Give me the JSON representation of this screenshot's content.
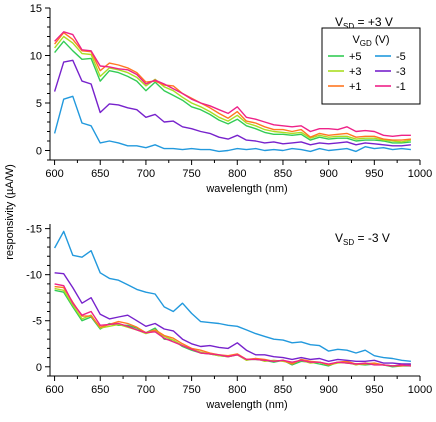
{
  "figure": {
    "shared_ylabel": "responsivity (µA/W)"
  },
  "chart_data": [
    {
      "type": "line",
      "panel": "top",
      "xlabel": "wavelength (nm)",
      "xlim": [
        595,
        1000
      ],
      "ylim": [
        -1,
        15
      ],
      "xticks": [
        600,
        650,
        700,
        750,
        800,
        850,
        900,
        950,
        1000
      ],
      "yticks": [
        0,
        5,
        10,
        15
      ],
      "ytick_labels": [
        "0",
        "5",
        "10",
        "15"
      ],
      "annotation": {
        "main": "V",
        "sub": "SD",
        "rest": " = +3 V"
      },
      "legend": {
        "title_main": "V",
        "title_sub": "GD",
        "title_rest": " (V)",
        "placement": "top-right"
      },
      "x": [
        600,
        610,
        620,
        630,
        640,
        650,
        660,
        670,
        680,
        690,
        700,
        710,
        720,
        730,
        740,
        750,
        760,
        770,
        780,
        790,
        800,
        810,
        820,
        830,
        840,
        850,
        860,
        870,
        880,
        890,
        900,
        910,
        920,
        930,
        940,
        950,
        960,
        970,
        980,
        990
      ],
      "series": [
        {
          "name": "+5",
          "color": "#33cc55",
          "values": [
            10.3,
            11.5,
            10.5,
            9.6,
            9.7,
            7.3,
            8.4,
            8.2,
            7.8,
            7.3,
            6.3,
            7.2,
            6.3,
            5.8,
            5.3,
            4.6,
            4.3,
            3.8,
            3.2,
            2.8,
            3.3,
            2.6,
            2.3,
            1.9,
            1.7,
            1.7,
            1.6,
            1.7,
            1.1,
            1.4,
            1.2,
            1.3,
            1.3,
            1.0,
            1.1,
            1.1,
            1.0,
            0.8,
            0.8,
            0.9
          ]
        },
        {
          "name": "+3",
          "color": "#aadd22",
          "values": [
            10.8,
            12.0,
            11.3,
            10.2,
            10.1,
            7.8,
            8.7,
            8.5,
            8.2,
            7.7,
            6.8,
            7.5,
            6.7,
            6.3,
            5.6,
            5.0,
            4.6,
            4.1,
            3.5,
            3.1,
            3.7,
            2.9,
            2.6,
            2.2,
            2.0,
            1.9,
            1.8,
            1.9,
            1.3,
            1.6,
            1.4,
            1.5,
            1.5,
            1.2,
            1.3,
            1.3,
            1.1,
            1.0,
            0.9,
            1.1
          ]
        },
        {
          "name": "+1",
          "color": "#ff7722",
          "values": [
            11.2,
            12.4,
            11.7,
            10.5,
            10.4,
            8.4,
            9.2,
            9.0,
            8.7,
            8.2,
            7.2,
            7.3,
            6.9,
            6.8,
            6.0,
            5.5,
            5.0,
            4.5,
            3.9,
            3.4,
            4.1,
            3.1,
            2.9,
            2.5,
            2.2,
            2.2,
            2.0,
            2.2,
            1.4,
            1.8,
            1.6,
            1.7,
            1.8,
            1.4,
            1.5,
            1.5,
            1.2,
            1.1,
            1.1,
            1.2
          ]
        },
        {
          "name": "-5",
          "color": "#2299dd",
          "values": [
            1.8,
            5.4,
            5.7,
            2.9,
            2.6,
            0.8,
            1.0,
            0.8,
            0.5,
            0.5,
            0.3,
            0.6,
            0.2,
            0.2,
            0.1,
            0.2,
            0.1,
            0.1,
            -0.1,
            0.0,
            0.2,
            0.1,
            0.2,
            0.0,
            0.1,
            0.0,
            0.2,
            0.1,
            -0.1,
            0.2,
            0.0,
            0.1,
            0.2,
            -0.1,
            0.4,
            0.2,
            0.3,
            0.1,
            0.2,
            0.1
          ]
        },
        {
          "name": "-3",
          "color": "#7722cc",
          "values": [
            6.2,
            9.3,
            9.5,
            7.3,
            7.0,
            4.0,
            4.9,
            4.8,
            4.5,
            4.3,
            3.5,
            3.8,
            3.0,
            3.1,
            2.5,
            2.3,
            2.0,
            1.8,
            1.4,
            1.2,
            1.6,
            1.1,
            1.0,
            0.8,
            0.9,
            0.7,
            0.8,
            0.9,
            0.6,
            0.8,
            0.7,
            0.8,
            0.9,
            0.6,
            0.8,
            0.7,
            0.6,
            0.5,
            0.5,
            0.6
          ]
        },
        {
          "name": "-1",
          "color": "#ee2288",
          "values": [
            11.5,
            12.5,
            12.2,
            10.6,
            10.5,
            8.9,
            8.8,
            8.6,
            8.5,
            8.0,
            7.0,
            7.4,
            7.0,
            6.5,
            6.0,
            5.4,
            5.0,
            4.7,
            4.3,
            3.9,
            4.6,
            3.5,
            3.3,
            3.0,
            2.7,
            2.6,
            2.5,
            2.6,
            2.0,
            2.3,
            2.3,
            2.2,
            2.5,
            2.0,
            2.1,
            2.0,
            1.6,
            1.5,
            1.6,
            1.6
          ]
        }
      ]
    },
    {
      "type": "line",
      "panel": "bottom",
      "xlabel": "wavelength (nm)",
      "xlim": [
        595,
        1000
      ],
      "ylim": [
        -15.5,
        1
      ],
      "xticks": [
        600,
        650,
        700,
        750,
        800,
        850,
        900,
        950,
        1000
      ],
      "yticks": [
        -15,
        -10,
        -5,
        0
      ],
      "ytick_labels": [
        "-15",
        "-10",
        "-5",
        "0"
      ],
      "annotation": {
        "main": "V",
        "sub": "SD",
        "rest": " = -3 V"
      },
      "x": [
        600,
        610,
        620,
        630,
        640,
        650,
        660,
        670,
        680,
        690,
        700,
        710,
        720,
        730,
        740,
        750,
        760,
        770,
        780,
        790,
        800,
        810,
        820,
        830,
        840,
        850,
        860,
        870,
        880,
        890,
        900,
        910,
        920,
        930,
        940,
        950,
        960,
        970,
        980,
        990
      ],
      "series": [
        {
          "name": "+5",
          "color": "#33cc55",
          "values": [
            -8.3,
            -8.1,
            -6.5,
            -5.0,
            -5.4,
            -4.1,
            -4.7,
            -4.5,
            -4.5,
            -4.2,
            -3.7,
            -4.2,
            -3.0,
            -2.9,
            -2.2,
            -1.8,
            -1.5,
            -1.4,
            -1.2,
            -1.1,
            -1.3,
            -0.8,
            -0.8,
            -0.7,
            -0.5,
            -0.7,
            -0.2,
            -0.6,
            -0.5,
            -0.3,
            -0.1,
            -0.5,
            -0.4,
            -0.3,
            -0.2,
            -0.3,
            -0.2,
            0.0,
            -0.1,
            -0.1
          ]
        },
        {
          "name": "+3",
          "color": "#aadd22",
          "values": [
            -8.5,
            -8.3,
            -6.7,
            -5.2,
            -5.6,
            -4.2,
            -4.4,
            -4.6,
            -4.3,
            -4.0,
            -3.6,
            -3.9,
            -3.3,
            -2.9,
            -2.3,
            -1.9,
            -1.6,
            -1.4,
            -1.2,
            -1.1,
            -1.3,
            -0.7,
            -0.9,
            -0.6,
            -0.7,
            -0.6,
            -0.4,
            -0.7,
            -0.4,
            -0.5,
            -0.2,
            -0.4,
            -0.5,
            -0.2,
            -0.4,
            -0.3,
            -0.2,
            -0.1,
            -0.2,
            -0.1
          ]
        },
        {
          "name": "+1",
          "color": "#ff7722",
          "values": [
            -8.7,
            -8.6,
            -7.0,
            -5.5,
            -5.5,
            -4.3,
            -4.6,
            -4.9,
            -4.7,
            -4.3,
            -3.7,
            -4.0,
            -3.4,
            -3.1,
            -2.5,
            -2.0,
            -1.8,
            -1.5,
            -1.3,
            -1.2,
            -1.4,
            -0.8,
            -0.9,
            -0.8,
            -0.6,
            -0.7,
            -0.3,
            -0.8,
            -0.6,
            -0.5,
            -0.2,
            -0.5,
            -0.6,
            -0.3,
            -0.3,
            -0.4,
            -0.2,
            -0.1,
            -0.1,
            -0.2
          ]
        },
        {
          "name": "-5",
          "color": "#2299dd",
          "values": [
            -12.9,
            -14.7,
            -12.1,
            -11.9,
            -12.6,
            -10.2,
            -9.6,
            -9.4,
            -8.9,
            -8.4,
            -8.1,
            -7.9,
            -6.5,
            -6.0,
            -6.9,
            -5.8,
            -4.9,
            -4.8,
            -4.7,
            -4.5,
            -4.4,
            -4.0,
            -3.6,
            -3.3,
            -3.0,
            -2.9,
            -2.6,
            -2.7,
            -2.4,
            -2.3,
            -1.7,
            -1.9,
            -1.8,
            -1.5,
            -1.8,
            -1.2,
            -1.0,
            -0.9,
            -0.7,
            -0.6
          ]
        },
        {
          "name": "-3",
          "color": "#7722cc",
          "values": [
            -10.2,
            -10.1,
            -8.6,
            -6.9,
            -7.5,
            -5.7,
            -5.2,
            -5.4,
            -5.6,
            -5.0,
            -4.4,
            -4.7,
            -4.1,
            -3.9,
            -3.0,
            -2.5,
            -2.2,
            -2.3,
            -2.1,
            -2.0,
            -2.6,
            -1.8,
            -1.3,
            -1.3,
            -1.1,
            -1.0,
            -0.8,
            -1.0,
            -0.8,
            -0.9,
            -0.6,
            -0.8,
            -0.7,
            -0.6,
            -0.6,
            -0.7,
            -0.4,
            -0.4,
            -0.3,
            -0.3
          ]
        },
        {
          "name": "-1",
          "color": "#ee2288",
          "values": [
            -9.0,
            -8.8,
            -6.9,
            -5.6,
            -6.0,
            -4.5,
            -4.6,
            -4.7,
            -4.4,
            -4.0,
            -3.7,
            -3.8,
            -3.1,
            -2.7,
            -2.3,
            -1.9,
            -1.5,
            -1.4,
            -1.3,
            -1.1,
            -1.3,
            -0.8,
            -0.8,
            -0.7,
            -0.6,
            -0.7,
            -0.5,
            -0.7,
            -0.5,
            -0.5,
            -0.3,
            -0.5,
            -0.4,
            -0.3,
            -0.4,
            -0.2,
            -0.2,
            -0.1,
            -0.2,
            -0.1
          ]
        }
      ]
    }
  ]
}
